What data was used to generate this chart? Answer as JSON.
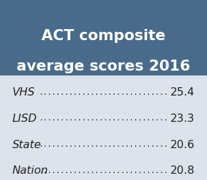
{
  "title_line1": "ACT composite",
  "title_line2": "average scores 2016",
  "header_bg": "#4a6a8a",
  "body_bg": "#dde3ea",
  "title_color": "#ffffff",
  "rows": [
    {
      "label": "VHS",
      "score": "25.4"
    },
    {
      "label": "LISD",
      "score": "23.3"
    },
    {
      "label": "State",
      "score": "20.6"
    },
    {
      "label": "Nation",
      "score": "20.8"
    }
  ],
  "label_color": "#222222",
  "score_color": "#222222",
  "dots": "..............................",
  "fig_width": 3.0,
  "fig_height": 2.6,
  "dpi": 100
}
